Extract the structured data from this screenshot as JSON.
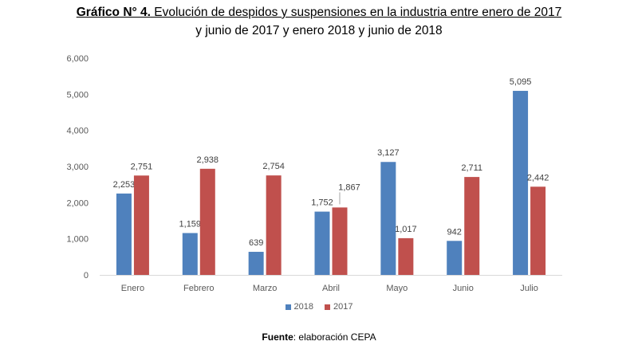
{
  "header": {
    "title_lead": "Gráfico N° 4.",
    "title_rest": " Evolución de despidos y suspensiones en la industria entre enero de 2017",
    "title_line2": "y junio de 2017 y enero 2018 y junio de 2018"
  },
  "footer": {
    "source_label": "Fuente",
    "source_text": ": elaboración CEPA"
  },
  "chart_data": {
    "type": "bar",
    "categories": [
      "Enero",
      "Febrero",
      "Marzo",
      "Abril",
      "Mayo",
      "Junio",
      "Julio"
    ],
    "series": [
      {
        "name": "2018",
        "color": "#4f81bd",
        "values": [
          2253,
          1159,
          639,
          1752,
          3127,
          942,
          5095
        ],
        "labels": [
          "2,253",
          "1,159",
          "639",
          "1,752",
          "3,127",
          "942",
          "5,095"
        ]
      },
      {
        "name": "2017",
        "color": "#c0504d",
        "values": [
          2751,
          2938,
          2754,
          1867,
          1017,
          2711,
          2442
        ],
        "labels": [
          "2,751",
          "2,938",
          "2,754",
          "1,867",
          "1,017",
          "2,711",
          "2,442"
        ]
      }
    ],
    "ylim": [
      0,
      6000
    ],
    "yticks": [
      0,
      1000,
      2000,
      3000,
      4000,
      5000,
      6000
    ],
    "ytick_labels": [
      "0",
      "1,000",
      "2,000",
      "3,000",
      "4,000",
      "5,000",
      "6,000"
    ],
    "grid": false,
    "legend_position": "bottom"
  }
}
